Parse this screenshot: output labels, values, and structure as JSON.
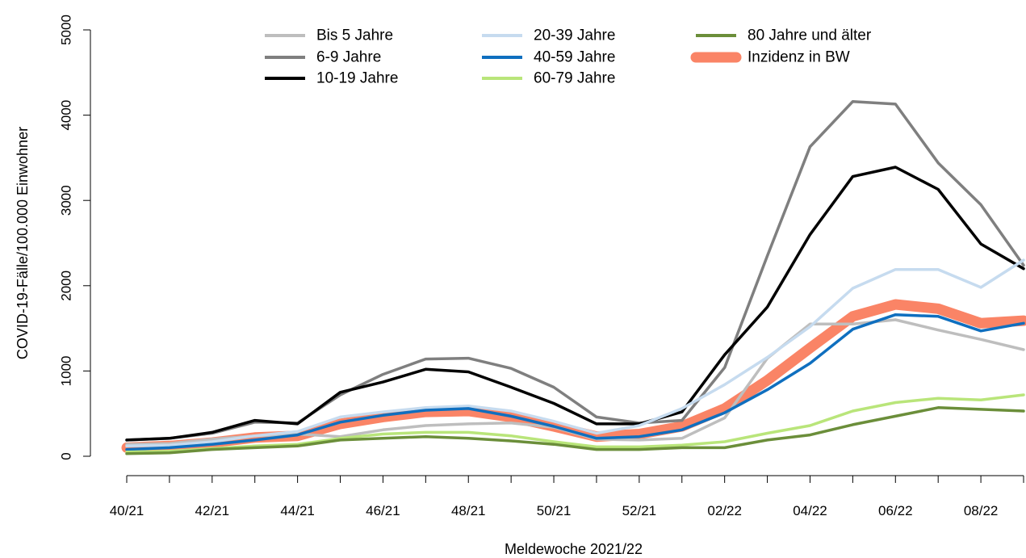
{
  "chart_data": {
    "type": "line",
    "title": "",
    "xlabel": "Meldewoche 2021/22",
    "ylabel": "COVID-19-Fälle/100.000 Einwohner",
    "ylim": [
      0,
      5000
    ],
    "yticks": [
      "0",
      "1000",
      "2000",
      "3000",
      "4000",
      "5000"
    ],
    "xticks": [
      "40/21",
      "42/21",
      "44/21",
      "46/21",
      "48/21",
      "50/21",
      "52/21",
      "02/22",
      "04/22",
      "06/22",
      "08/22"
    ],
    "x": [
      "40/21",
      "41/21",
      "42/21",
      "43/21",
      "44/21",
      "45/21",
      "46/21",
      "47/21",
      "48/21",
      "49/21",
      "50/21",
      "51/21",
      "52/21",
      "01/22",
      "02/22",
      "03/22",
      "04/22",
      "05/22",
      "06/22",
      "07/22",
      "08/22",
      "09/22"
    ],
    "grid": false,
    "legend_position": "top",
    "series": [
      {
        "name": "Bis 5 Jahre",
        "color": "#bebebe",
        "width": 3.5,
        "values": [
          140,
          150,
          200,
          240,
          260,
          230,
          310,
          360,
          380,
          390,
          340,
          200,
          190,
          210,
          450,
          1150,
          1550,
          1550,
          1600,
          1480,
          1370,
          1250
        ]
      },
      {
        "name": "6-9 Jahre",
        "color": "#7f7f7f",
        "width": 3.5,
        "values": [
          190,
          210,
          270,
          400,
          390,
          720,
          960,
          1140,
          1150,
          1030,
          810,
          460,
          390,
          420,
          1040,
          2350,
          3630,
          4160,
          4130,
          3440,
          2950,
          2240
        ]
      },
      {
        "name": "10-19 Jahre",
        "color": "#000000",
        "width": 3.5,
        "values": [
          190,
          210,
          280,
          420,
          380,
          750,
          870,
          1020,
          990,
          810,
          620,
          380,
          380,
          520,
          1190,
          1750,
          2600,
          3280,
          3390,
          3130,
          2490,
          2200
        ]
      },
      {
        "name": "20-39 Jahre",
        "color": "#c6dbef",
        "width": 3.5,
        "values": [
          120,
          130,
          170,
          240,
          290,
          460,
          520,
          570,
          590,
          530,
          410,
          270,
          360,
          560,
          840,
          1160,
          1520,
          1970,
          2190,
          2190,
          1980,
          2300
        ]
      },
      {
        "name": "40-59 Jahre",
        "color": "#0f6fbf",
        "width": 3.5,
        "values": [
          80,
          100,
          140,
          190,
          250,
          400,
          480,
          540,
          560,
          470,
          350,
          210,
          230,
          310,
          510,
          780,
          1090,
          1490,
          1660,
          1640,
          1470,
          1560
        ]
      },
      {
        "name": "60-79 Jahre",
        "color": "#b9e57a",
        "width": 3.5,
        "values": [
          50,
          60,
          90,
          120,
          140,
          210,
          260,
          280,
          280,
          240,
          170,
          110,
          110,
          130,
          170,
          270,
          360,
          530,
          630,
          680,
          660,
          720
        ]
      },
      {
        "name": "80 Jahre und älter",
        "color": "#6b8e3a",
        "width": 3.5,
        "values": [
          30,
          40,
          80,
          100,
          120,
          190,
          210,
          230,
          210,
          180,
          140,
          80,
          80,
          100,
          100,
          190,
          250,
          370,
          470,
          570,
          550,
          530
        ]
      },
      {
        "name": "Inzidenz in BW",
        "color": "#fa8466",
        "width": 13,
        "values": [
          100,
          120,
          160,
          220,
          240,
          380,
          460,
          520,
          530,
          460,
          350,
          230,
          260,
          350,
          560,
          890,
          1270,
          1640,
          1780,
          1730,
          1560,
          1590
        ]
      }
    ],
    "draw_order": [
      7,
      0,
      1,
      2,
      3,
      4,
      5,
      6
    ],
    "legend_columns": [
      [
        0,
        1,
        2
      ],
      [
        3,
        4,
        5
      ],
      [
        6,
        7
      ]
    ]
  }
}
